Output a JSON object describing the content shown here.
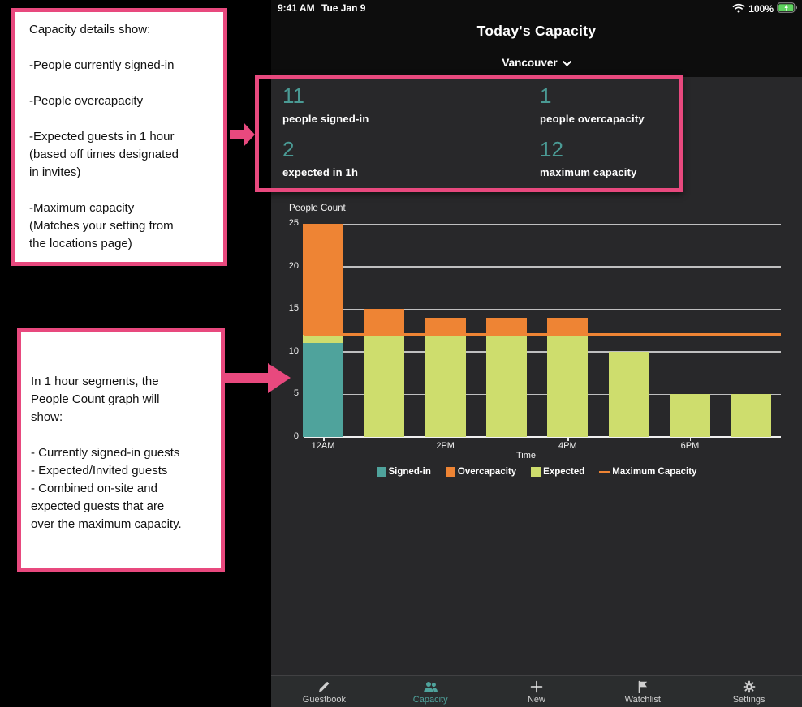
{
  "colors": {
    "pink": "#e8497e",
    "teal": "#4fa39c",
    "teal_number": "#4a9a94",
    "orange": "#ee8434",
    "green": "#cedd6d",
    "battery_green": "#5fd35f",
    "app_bg": "#28282a",
    "header_bg": "#0d0d0d",
    "tabbar_bg": "#2b2d2e"
  },
  "status": {
    "time": "9:41 AM",
    "date": "Tue Jan 9",
    "battery": "100%",
    "icons": [
      "wifi-icon",
      "battery-charging-icon"
    ]
  },
  "header": {
    "title": "Today's Capacity",
    "location": "Vancouver"
  },
  "stats": {
    "items": [
      {
        "value": "11",
        "label": "people signed-in"
      },
      {
        "value": "1",
        "label": "people overcapacity"
      },
      {
        "value": "2",
        "label": "expected in 1h"
      },
      {
        "value": "12",
        "label": "maximum capacity"
      }
    ]
  },
  "chart_data": {
    "type": "bar",
    "title": "People Count",
    "xlabel": "Time",
    "ylim": [
      0,
      25
    ],
    "yticks": [
      0,
      5,
      10,
      15,
      20,
      25
    ],
    "grid": true,
    "categories": [
      "12AM",
      "",
      "2PM",
      "",
      "4PM",
      "",
      "6PM",
      ""
    ],
    "series": [
      {
        "name": "Signed-in",
        "color": "#4fa39c",
        "values": [
          11,
          0,
          0,
          0,
          0,
          0,
          0,
          0
        ]
      },
      {
        "name": "Expected",
        "color": "#cedd6d",
        "values": [
          1,
          12,
          12,
          12,
          12,
          10,
          5,
          5
        ]
      },
      {
        "name": "Overcapacity",
        "color": "#ee8434",
        "values": [
          13,
          3,
          2,
          2,
          2,
          0,
          0,
          0
        ]
      }
    ],
    "max_capacity_line": {
      "label": "Maximum Capacity",
      "value": 12,
      "color": "#ee8434"
    },
    "legend": [
      {
        "label": "Signed-in",
        "color": "#4fa39c",
        "type": "square"
      },
      {
        "label": "Overcapacity",
        "color": "#ee8434",
        "type": "square"
      },
      {
        "label": "Expected",
        "color": "#cedd6d",
        "type": "square"
      },
      {
        "label": "Maximum Capacity",
        "color": "#ee8434",
        "type": "line"
      }
    ],
    "legend_position": "bottom"
  },
  "tabbar": {
    "items": [
      {
        "label": "Guestbook",
        "icon": "pencil-icon",
        "active": false
      },
      {
        "label": "Capacity",
        "icon": "people-icon",
        "active": true
      },
      {
        "label": "New",
        "icon": "plus-icon",
        "active": false
      },
      {
        "label": "Watchlist",
        "icon": "flag-icon",
        "active": false
      },
      {
        "label": "Settings",
        "icon": "gear-icon",
        "active": false
      }
    ]
  },
  "annotations": {
    "box1": {
      "paragraphs": [
        [
          "Capacity details show:"
        ],
        [
          "-People currently signed-in"
        ],
        [
          "-People overcapacity"
        ],
        [
          "-Expected guests in 1 hour",
          "(based off times designated",
          "in invites)"
        ],
        [
          "-Maximum capacity",
          "(Matches your setting from",
          "the locations page)"
        ]
      ]
    },
    "box2": {
      "paragraphs": [
        [
          "In 1 hour segments, the",
          "People Count graph will",
          "show:"
        ],
        [
          "- Currently signed-in guests",
          "- Expected/Invited guests",
          "- Combined on-site and",
          "expected guests that are",
          "over the maximum capacity."
        ]
      ]
    }
  }
}
